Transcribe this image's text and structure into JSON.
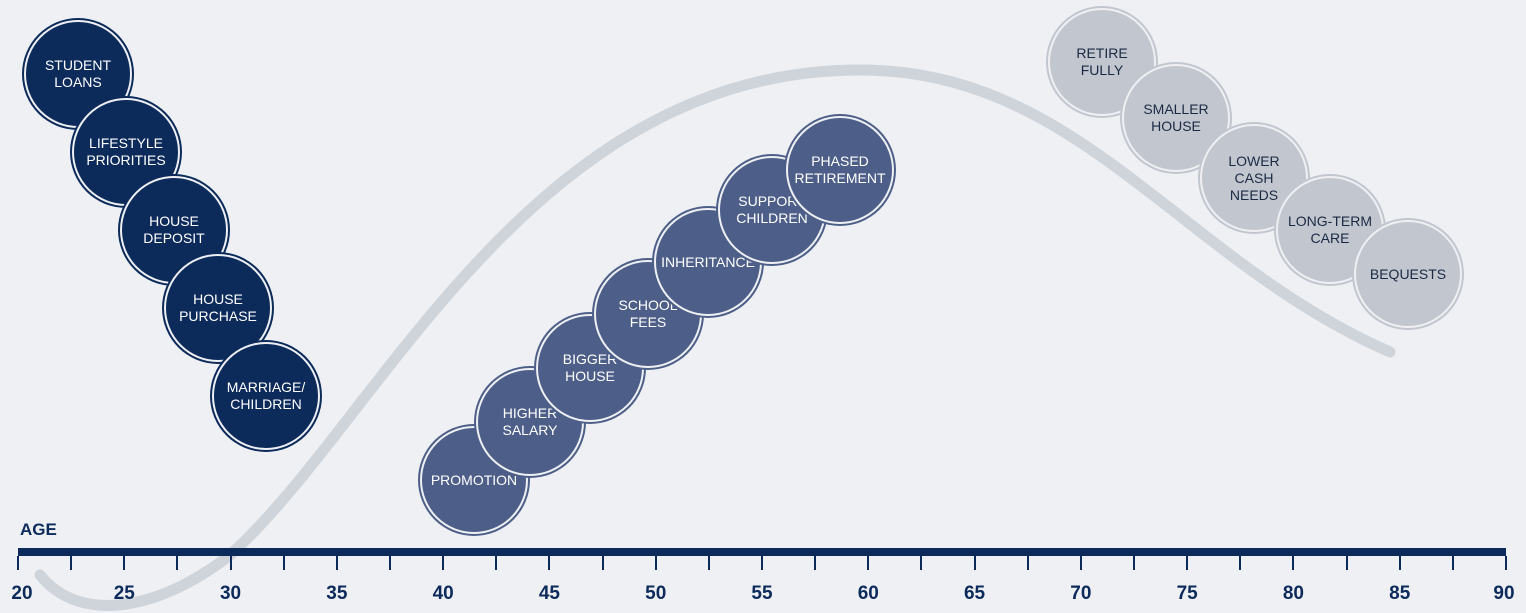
{
  "colors": {
    "early": "#0c2a5a",
    "mid": "#4d5f88",
    "late": "#c2c6ce",
    "curve": "#cfd4da",
    "axis": "#0c2a5a"
  },
  "axis": {
    "title": "AGE",
    "min": 20,
    "max": 90,
    "labels": [
      "20",
      "25",
      "30",
      "35",
      "40",
      "45",
      "50",
      "55",
      "60",
      "65",
      "70",
      "75",
      "80",
      "85",
      "90"
    ]
  },
  "groups": {
    "early": [
      "STUDENT\nLOANS",
      "LIFESTYLE\nPRIORITIES",
      "HOUSE\nDEPOSIT",
      "HOUSE\nPURCHASE",
      "MARRIAGE/\nCHILDREN"
    ],
    "mid": [
      "PROMOTION",
      "HIGHER\nSALARY",
      "BIGGER\nHOUSE",
      "SCHOOL\nFEES",
      "INHERITANCE",
      "SUPPORT\nCHILDREN",
      "PHASED\nRETIREMENT"
    ],
    "late": [
      "RETIRE\nFULLY",
      "SMALLER\nHOUSE",
      "LOWER\nCASH\nNEEDS",
      "LONG-TERM\nCARE",
      "BEQUESTS"
    ]
  }
}
